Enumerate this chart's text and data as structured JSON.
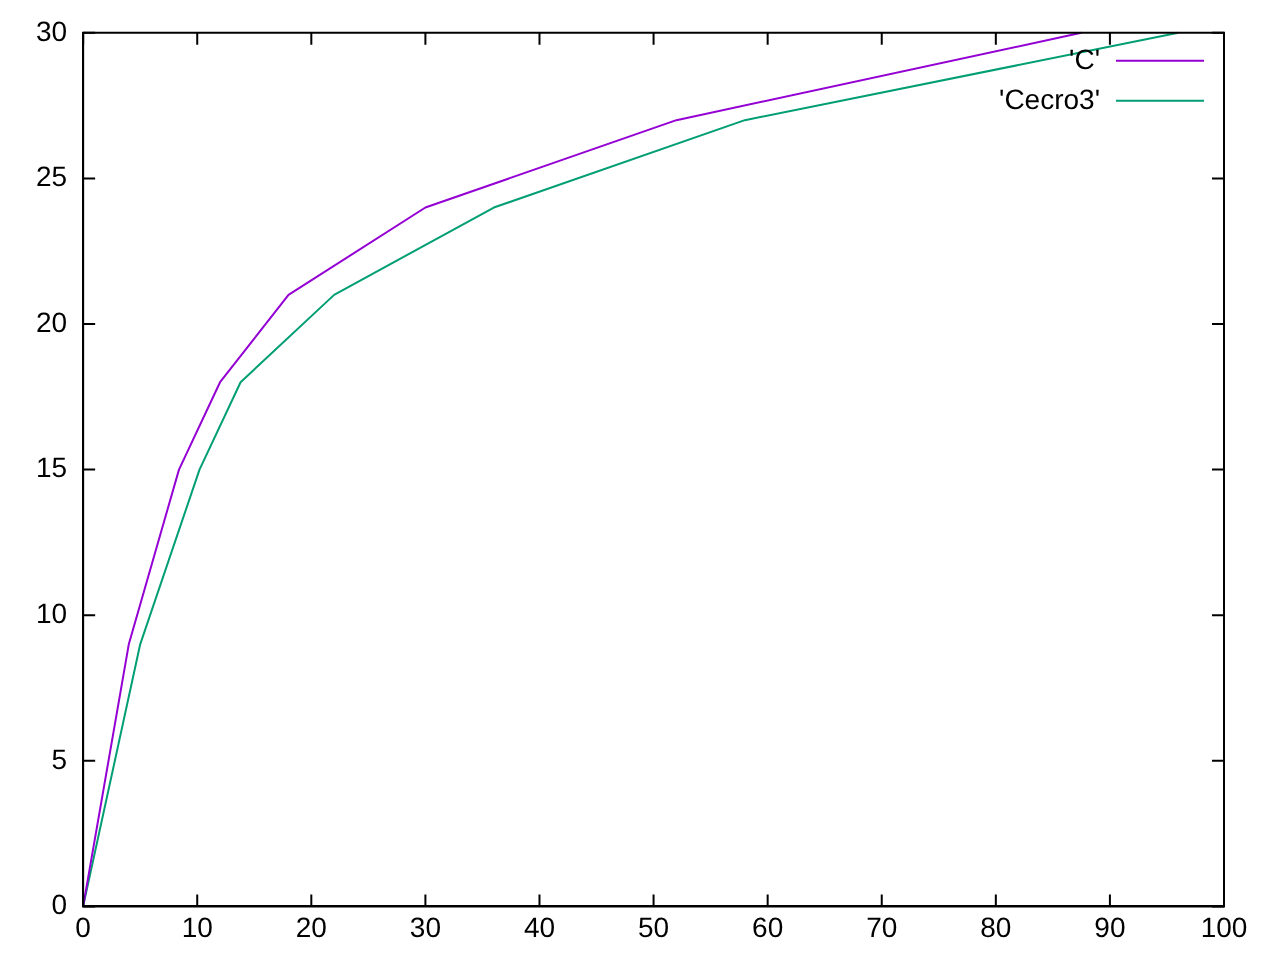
{
  "chart_data": {
    "type": "line",
    "series": [
      {
        "name": "'C'",
        "color": "#9400d3",
        "x": [
          0,
          4,
          8.4,
          12,
          18,
          30,
          52,
          87.5
        ],
        "values": [
          0,
          9,
          15,
          18,
          21,
          24,
          27,
          30
        ]
      },
      {
        "name": "'Cecro3'",
        "color": "#009e73",
        "x": [
          0,
          5,
          10.2,
          13.8,
          22,
          36,
          58,
          96
        ],
        "values": [
          0,
          9,
          15,
          18,
          21,
          24,
          27,
          30
        ]
      }
    ],
    "xlim": [
      0,
      100
    ],
    "xticks": [
      0,
      10,
      20,
      30,
      40,
      50,
      60,
      70,
      80,
      90,
      100
    ],
    "ylim": [
      0,
      30
    ],
    "yticks": [
      0,
      5,
      10,
      15,
      20,
      25,
      30
    ],
    "grid": false,
    "legend": "top right",
    "marker": "none",
    "line_style": "solid"
  }
}
